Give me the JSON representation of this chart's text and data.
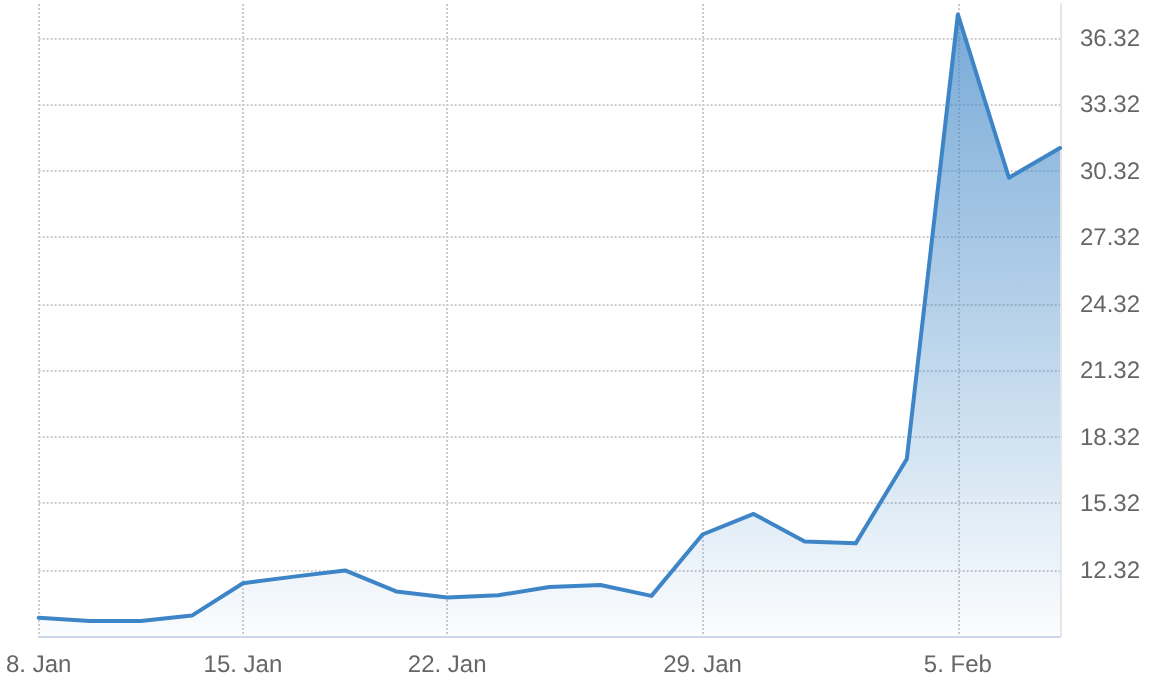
{
  "chart_data": {
    "type": "area",
    "categories": [
      "8. Jan",
      null,
      null,
      null,
      "15. Jan",
      null,
      null,
      null,
      "22. Jan",
      null,
      null,
      null,
      null,
      "29. Jan",
      null,
      null,
      null,
      null,
      "5. Feb",
      null,
      null
    ],
    "series": [
      {
        "color": "#3d85c6",
        "values": [
          10.14,
          10.0,
          10.0,
          10.24,
          11.7,
          12.0,
          12.28,
          11.33,
          11.06,
          11.16,
          11.53,
          11.62,
          11.13,
          13.9,
          14.83,
          13.58,
          13.5,
          17.31,
          37.37,
          30.0,
          31.34
        ]
      }
    ],
    "ylim": [
      9.32,
      37.84
    ],
    "yticks": [
      12.32,
      15.32,
      18.32,
      21.32,
      24.32,
      27.32,
      30.32,
      33.32,
      36.32
    ],
    "grid": true,
    "marker": "none",
    "line_style": "solid"
  }
}
